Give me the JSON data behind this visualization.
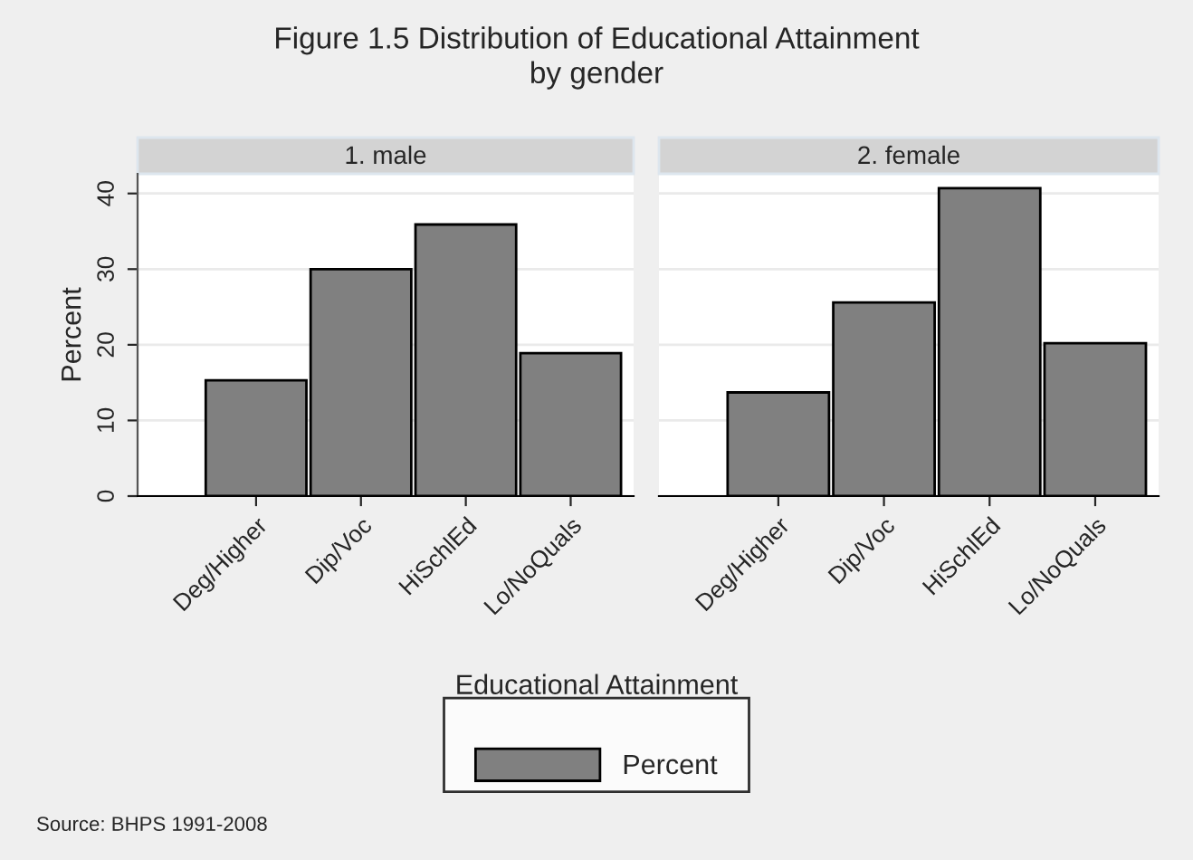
{
  "chart_data": [
    {
      "type": "bar",
      "title": "Figure 1.5 Distribution of Educational Attainment\nby gender",
      "subtitle": "1. male",
      "ylabel": "Percent",
      "legend_title": "Educational Attainment",
      "legend": "bottom",
      "categories": [
        "Deg/Higher",
        "Dip/Voc",
        "HiSchlEd",
        "Lo/NoQuals"
      ],
      "series": [
        {
          "name": "Percent",
          "color": "#808080",
          "values": [
            15.3,
            30.0,
            35.9,
            18.9
          ]
        }
      ],
      "ylim": [
        0,
        42.6
      ],
      "yticks": [
        0,
        10,
        20,
        30,
        40
      ],
      "grid": "y",
      "annotations": [
        "Source: BHPS 1991-2008"
      ]
    },
    {
      "type": "bar",
      "subtitle": "2. female",
      "categories": [
        "Deg/Higher",
        "Dip/Voc",
        "HiSchlEd",
        "Lo/NoQuals"
      ],
      "series": [
        {
          "color": "#808080",
          "values": [
            13.7,
            25.6,
            40.7,
            20.2
          ]
        }
      ],
      "ylim": [
        0,
        42.6
      ],
      "yticks": [
        0,
        10,
        20,
        30,
        40
      ],
      "grid": "y",
      "tick_labels": "x"
    }
  ]
}
